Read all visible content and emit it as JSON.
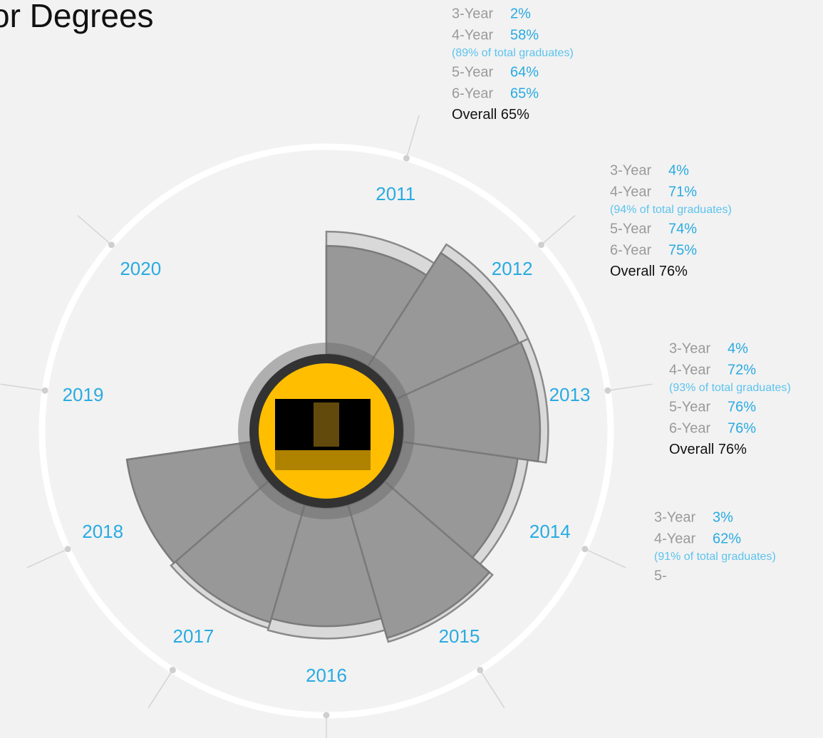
{
  "chart_data": {
    "type": "radial-bar",
    "title": "or Degrees",
    "categories": [
      "2011",
      "2012",
      "2013",
      "2014",
      "2015",
      "2016",
      "2017",
      "2018",
      "2019",
      "2020",
      null
    ],
    "series": [
      {
        "color": "#d9d9d9",
        "values": [
          65,
          76,
          76,
          67,
          75,
          69,
          68,
          66,
          null,
          null,
          null
        ]
      },
      {
        "color": "#989898",
        "values": [
          58,
          71,
          72,
          62,
          73,
          63,
          65,
          66,
          null,
          null,
          null
        ]
      }
    ],
    "rlim": [
      0,
      100
    ],
    "annotations": [
      {
        "lines": [
          {
            "label": "3-Year",
            "value": "2%"
          },
          {
            "label": "4-Year",
            "value": "58%"
          },
          {
            "note": "(89% of total graduates)"
          },
          {
            "label": "5-Year",
            "value": "64%"
          },
          {
            "label": "6-Year",
            "value": "65%"
          },
          {
            "total": "Overall",
            "value": "65%"
          }
        ]
      },
      {
        "lines": [
          {
            "label": "3-Year",
            "value": "4%"
          },
          {
            "label": "4-Year",
            "value": "71%"
          },
          {
            "note": "(94% of total graduates)"
          },
          {
            "label": "5-Year",
            "value": "74%"
          },
          {
            "label": "6-Year",
            "value": "75%"
          },
          {
            "total": "Overall",
            "value": "76%"
          }
        ]
      },
      {
        "lines": [
          {
            "label": "3-Year",
            "value": "4%"
          },
          {
            "label": "4-Year",
            "value": "72%"
          },
          {
            "note": "(93% of total graduates)"
          },
          {
            "label": "5-Year",
            "value": "76%"
          },
          {
            "label": "6-Year",
            "value": "76%"
          },
          {
            "total": "Overall",
            "value": "76%"
          }
        ]
      },
      {
        "lines": [
          {
            "label": "3-Year",
            "value": "3%"
          },
          {
            "label": "4-Year",
            "value": "62%"
          },
          {
            "note": "(91% of total graduates)"
          },
          {
            "label": "5-"
          }
        ]
      }
    ]
  }
}
